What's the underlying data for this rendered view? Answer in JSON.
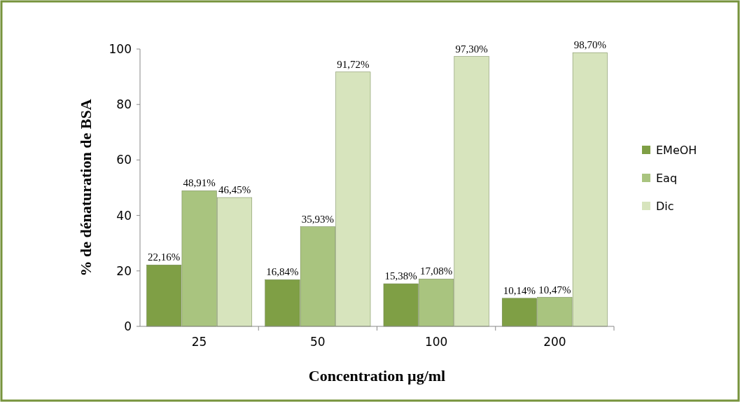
{
  "chart_data": {
    "type": "bar",
    "xlabel": "Concentration µg/ml",
    "ylabel": "% de dénaturation de BSA",
    "categories": [
      "25",
      "50",
      "100",
      "200"
    ],
    "series": [
      {
        "name": "EMeOH",
        "color": "#7f9f45",
        "values": [
          22.16,
          16.84,
          15.38,
          10.14
        ],
        "value_labels": [
          "22,16%",
          "16,84%",
          "15,38%",
          "10,14%"
        ]
      },
      {
        "name": "Eaq",
        "color": "#a9c47f",
        "values": [
          48.91,
          35.93,
          17.08,
          10.47
        ],
        "value_labels": [
          "48,91%",
          "35,93%",
          "17,08%",
          "10,47%"
        ]
      },
      {
        "name": "Dic",
        "color": "#d7e4bd",
        "values": [
          46.45,
          91.72,
          97.3,
          98.7
        ],
        "value_labels": [
          "46,45%",
          "91,72%",
          "97,30%",
          "98,70%"
        ]
      }
    ],
    "ylim": [
      0,
      100
    ],
    "yticks": [
      0,
      20,
      40,
      60,
      80,
      100
    ],
    "legend": "right",
    "grid": false
  }
}
